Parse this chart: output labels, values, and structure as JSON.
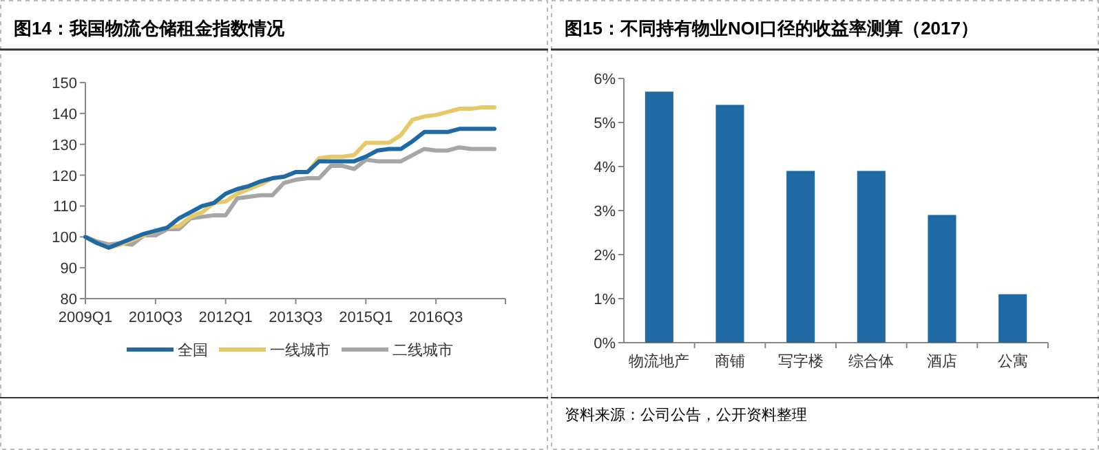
{
  "chart_data": [
    {
      "type": "line",
      "title": "图14：我国物流仓储租金指数情况",
      "categories": [
        "2009Q1",
        null,
        null,
        null,
        null,
        null,
        "2010Q3",
        null,
        null,
        null,
        null,
        null,
        "2012Q1",
        null,
        null,
        null,
        null,
        null,
        "2013Q3",
        null,
        null,
        null,
        null,
        null,
        "2015Q1",
        null,
        null,
        null,
        null,
        null,
        "2016Q3",
        null,
        null,
        null,
        null,
        null
      ],
      "series": [
        {
          "name": "全国",
          "color": "#1f6aa5",
          "values": [
            100,
            98,
            96.5,
            98,
            99.5,
            101,
            102,
            103,
            106,
            108,
            110,
            111,
            114,
            115.5,
            116.5,
            118,
            119,
            119.5,
            121,
            121,
            124.5,
            124.5,
            124.5,
            124.5,
            126,
            128,
            128.5,
            128.5,
            131,
            134,
            134,
            134,
            135,
            135,
            135,
            135
          ]
        },
        {
          "name": "一线城市",
          "color": "#e8c96a",
          "values": [
            100,
            98,
            96.5,
            97.5,
            99,
            100.5,
            102,
            103,
            103.5,
            106.5,
            108,
            111,
            111.5,
            114,
            115.5,
            117,
            119,
            119.5,
            121,
            121,
            125.5,
            126,
            126,
            126.5,
            130.5,
            130.5,
            130.5,
            133,
            138,
            139,
            139.5,
            140.5,
            141.5,
            141.5,
            142,
            142
          ]
        },
        {
          "name": "二线城市",
          "color": "#a6a6a6",
          "values": [
            100,
            98.5,
            97.5,
            98,
            97.5,
            100.5,
            100.5,
            102.5,
            102.5,
            106,
            106.5,
            107,
            107,
            112.5,
            113,
            113.5,
            113.5,
            117.5,
            118.5,
            119,
            119,
            123,
            123,
            122,
            125,
            124.5,
            124.5,
            124.5,
            126.5,
            128.5,
            128,
            128,
            129,
            128.5,
            128.5,
            128.5
          ]
        }
      ],
      "ylim": [
        80,
        150
      ],
      "yticks": [
        80,
        90,
        100,
        110,
        120,
        130,
        140,
        150
      ],
      "legend": "bottom",
      "grid": false
    },
    {
      "type": "bar",
      "title": "图15：不同持有物业NOI口径的收益率测算（2017）",
      "categories": [
        "物流地产",
        "商铺",
        "写字楼",
        "综合体",
        "酒店",
        "公寓"
      ],
      "values": [
        5.7,
        5.4,
        3.9,
        3.9,
        2.9,
        1.1
      ],
      "color": "#1f6aa5",
      "ylim": [
        0,
        6
      ],
      "yticks": [
        {
          "value": 0,
          "label": "0%"
        },
        {
          "value": 1,
          "label": "1%"
        },
        {
          "value": 2,
          "label": "2%"
        },
        {
          "value": 3,
          "label": "3%"
        },
        {
          "value": 4,
          "label": "4%"
        },
        {
          "value": 5,
          "label": "5%"
        },
        {
          "value": 6,
          "label": "6%"
        }
      ],
      "grid": false,
      "annotations": [
        "资料来源：公司公告，公开资料整理"
      ]
    }
  ]
}
